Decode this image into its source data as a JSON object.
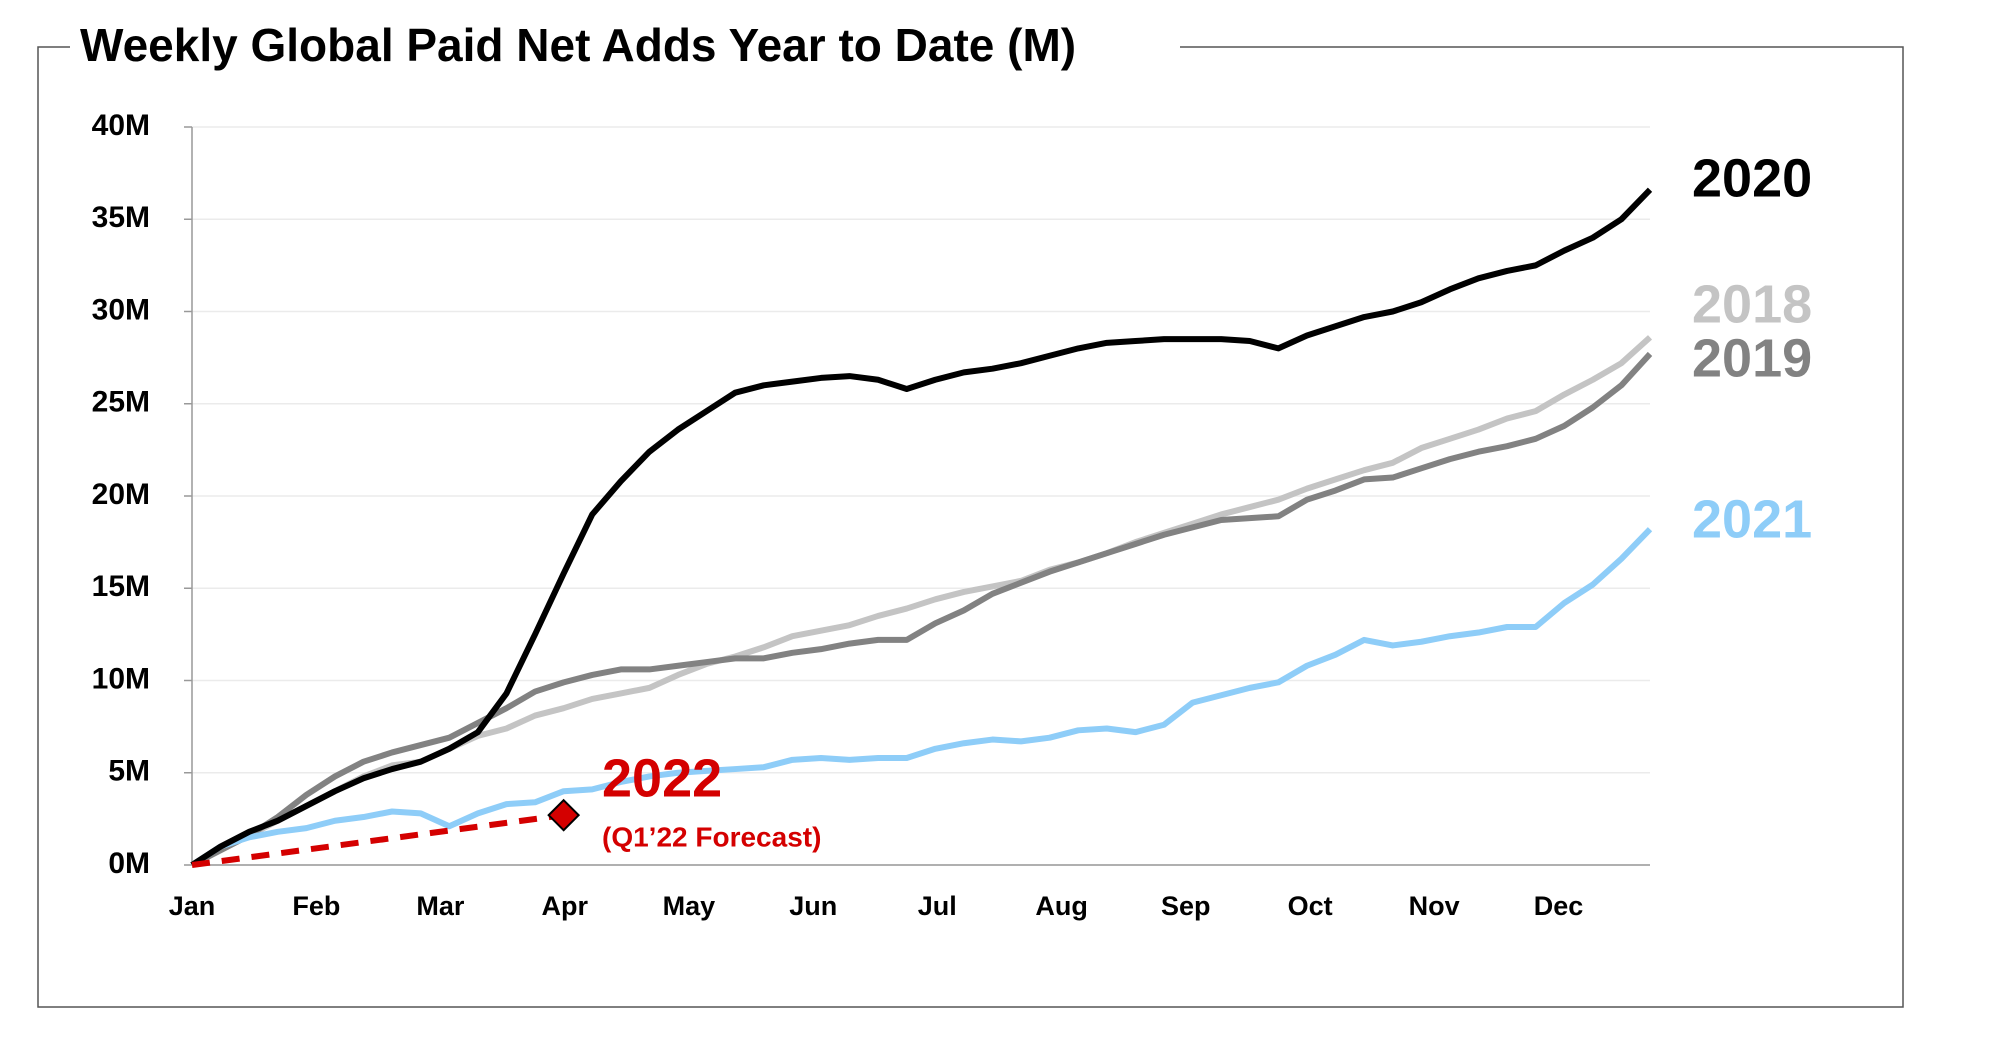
{
  "chart_data": {
    "type": "line",
    "title": "Weekly Global Paid Net Adds Year to Date (M)",
    "x": [
      0,
      1,
      2,
      3,
      4,
      5,
      6,
      7,
      8,
      9,
      10,
      11,
      12,
      13,
      14,
      15,
      16,
      17,
      18,
      19,
      20,
      21,
      22,
      23,
      24,
      25,
      26,
      27,
      28,
      29,
      30,
      31,
      32,
      33,
      34,
      35,
      36,
      37,
      38,
      39,
      40,
      41,
      42,
      43,
      44,
      45,
      46,
      47,
      48,
      49,
      50,
      51
    ],
    "xlim": [
      0,
      51
    ],
    "xticks": [
      {
        "value": 0,
        "label": "Jan"
      },
      {
        "value": 4.35,
        "label": "Feb"
      },
      {
        "value": 8.69,
        "label": "Mar"
      },
      {
        "value": 13.04,
        "label": "Apr"
      },
      {
        "value": 17.38,
        "label": "May"
      },
      {
        "value": 21.73,
        "label": "Jun"
      },
      {
        "value": 26.07,
        "label": "Jul"
      },
      {
        "value": 30.42,
        "label": "Aug"
      },
      {
        "value": 34.76,
        "label": "Sep"
      },
      {
        "value": 39.11,
        "label": "Oct"
      },
      {
        "value": 43.45,
        "label": "Nov"
      },
      {
        "value": 47.8,
        "label": "Dec"
      }
    ],
    "ylim": [
      0,
      40
    ],
    "yticks": [
      {
        "value": 0,
        "label": "0M"
      },
      {
        "value": 5,
        "label": "5M"
      },
      {
        "value": 10,
        "label": "10M"
      },
      {
        "value": 15,
        "label": "15M"
      },
      {
        "value": 20,
        "label": "20M"
      },
      {
        "value": 25,
        "label": "25M"
      },
      {
        "value": 30,
        "label": "30M"
      },
      {
        "value": 35,
        "label": "35M"
      },
      {
        "value": 40,
        "label": "40M"
      }
    ],
    "grid": true,
    "series": [
      {
        "name": "2018",
        "color": "#c4c4c4",
        "values": [
          0,
          0.8,
          1.6,
          2.4,
          3.2,
          4,
          4.8,
          5.4,
          5.6,
          6.3,
          7,
          7.4,
          8.1,
          8.5,
          9,
          9.3,
          9.6,
          10.3,
          10.9,
          11.3,
          11.8,
          12.4,
          12.7,
          13,
          13.5,
          13.9,
          14.4,
          14.8,
          15.1,
          15.4,
          16,
          16.4,
          16.9,
          17.5,
          18,
          18.5,
          19,
          19.4,
          19.8,
          20.4,
          20.9,
          21.4,
          21.8,
          22.6,
          23.1,
          23.6,
          24.2,
          24.6,
          25.5,
          26.3,
          27.2,
          28.6
        ]
      },
      {
        "name": "2019",
        "color": "#828282",
        "values": [
          0,
          0.8,
          1.6,
          2.6,
          3.8,
          4.8,
          5.6,
          6.1,
          6.5,
          6.9,
          7.7,
          8.5,
          9.4,
          9.9,
          10.3,
          10.6,
          10.6,
          10.8,
          11,
          11.2,
          11.2,
          11.5,
          11.7,
          12,
          12.2,
          12.2,
          13.1,
          13.8,
          14.7,
          15.3,
          15.9,
          16.4,
          16.9,
          17.4,
          17.9,
          18.3,
          18.7,
          18.8,
          18.9,
          19.8,
          20.3,
          20.9,
          21,
          21.5,
          22,
          22.4,
          22.7,
          23.1,
          23.8,
          24.8,
          26,
          27.7
        ]
      },
      {
        "name": "2021",
        "color": "#8ecdf8",
        "values": [
          0,
          1,
          1.5,
          1.8,
          2,
          2.4,
          2.6,
          2.9,
          2.8,
          2.1,
          2.8,
          3.3,
          3.4,
          4,
          4.1,
          4.5,
          4.8,
          5,
          5.1,
          5.2,
          5.3,
          5.7,
          5.8,
          5.7,
          5.8,
          5.8,
          6.3,
          6.6,
          6.8,
          6.7,
          6.9,
          7.3,
          7.4,
          7.2,
          7.6,
          8.8,
          9.2,
          9.6,
          9.9,
          10.8,
          11.4,
          12.2,
          11.9,
          12.1,
          12.4,
          12.6,
          12.9,
          12.9,
          14.2,
          15.2,
          16.6,
          18.2
        ]
      },
      {
        "name": "2020",
        "color": "#000000",
        "values": [
          0,
          1,
          1.8,
          2.4,
          3.2,
          4,
          4.7,
          5.2,
          5.6,
          6.3,
          7.2,
          9.3,
          12.5,
          15.8,
          19,
          20.8,
          22.4,
          23.6,
          24.6,
          25.6,
          26,
          26.2,
          26.4,
          26.5,
          26.3,
          25.8,
          26.3,
          26.7,
          26.9,
          27.2,
          27.6,
          28,
          28.3,
          28.4,
          28.5,
          28.5,
          28.5,
          28.4,
          28,
          28.7,
          29.2,
          29.7,
          30,
          30.5,
          31.2,
          31.8,
          32.2,
          32.5,
          33.3,
          34,
          35,
          36.6
        ]
      },
      {
        "name": "2022",
        "color": "#d40000",
        "dashed": true,
        "marker": "diamond",
        "annotation": "(Q1’22 Forecast)",
        "x": [
          0,
          13
        ],
        "values": [
          0,
          2.7
        ]
      }
    ]
  }
}
